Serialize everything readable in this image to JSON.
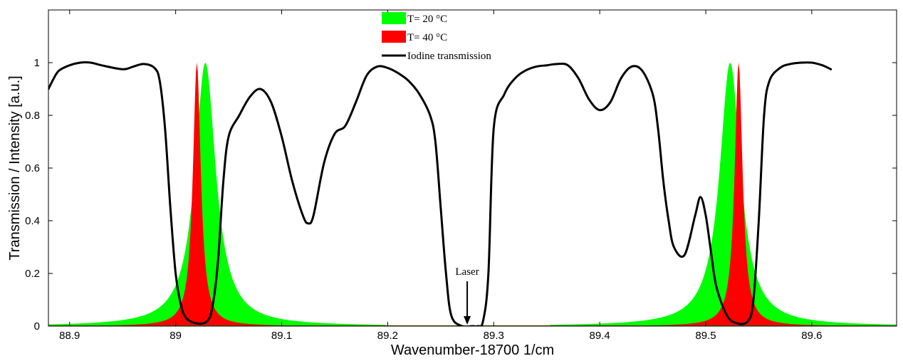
{
  "chart_data": {
    "type": "area",
    "title": "",
    "xlabel": "Wavenumber-18700 1/cm",
    "ylabel": "Transmission / Intensity [a.u.]",
    "xlim": [
      88.88,
      89.68
    ],
    "ylim": [
      0,
      1.2
    ],
    "xticks": [
      88.9,
      89,
      89.1,
      89.2,
      89.3,
      89.4,
      89.5,
      89.6
    ],
    "xtick_labels": [
      "88.9",
      "89",
      "89.1",
      "89.2",
      "89.3",
      "89.4",
      "89.5",
      "89.6"
    ],
    "yticks": [
      0,
      0.2,
      0.4,
      0.6,
      0.8,
      1
    ],
    "ytick_labels": [
      "0",
      "0.2",
      "0.4",
      "0.6",
      "0.8",
      "1"
    ],
    "grid": false,
    "legend_position": "top-center",
    "series": [
      {
        "name": "T= 20 °C",
        "kind": "filled-peaks",
        "color": "#00ff00",
        "peaks": [
          {
            "center": 89.028,
            "height": 1.0,
            "halfwidth": 0.012
          },
          {
            "center": 89.523,
            "height": 1.0,
            "halfwidth": 0.012
          }
        ]
      },
      {
        "name": "T= 40 °C",
        "kind": "filled-peaks",
        "color": "#ff0000",
        "peaks": [
          {
            "center": 89.02,
            "height": 1.0,
            "halfwidth": 0.0045
          },
          {
            "center": 89.531,
            "height": 1.0,
            "halfwidth": 0.0045
          }
        ]
      },
      {
        "name": "Iodine transmission",
        "kind": "line",
        "color": "#000000",
        "x": [
          88.88,
          88.885,
          88.89,
          88.9,
          88.91,
          88.92,
          88.93,
          88.95,
          88.96,
          88.97,
          88.98,
          88.985,
          88.99,
          88.995,
          89.0,
          89.005,
          89.01,
          89.02,
          89.03,
          89.035,
          89.04,
          89.045,
          89.05,
          89.06,
          89.07,
          89.08,
          89.09,
          89.1,
          89.11,
          89.12,
          89.125,
          89.13,
          89.14,
          89.15,
          89.16,
          89.17,
          89.18,
          89.19,
          89.2,
          89.21,
          89.22,
          89.23,
          89.24,
          89.245,
          89.25,
          89.255,
          89.26,
          89.27,
          89.28,
          89.285,
          89.29,
          89.295,
          89.3,
          89.31,
          89.32,
          89.33,
          89.34,
          89.35,
          89.36,
          89.37,
          89.38,
          89.39,
          89.4,
          89.41,
          89.42,
          89.43,
          89.44,
          89.45,
          89.455,
          89.46,
          89.465,
          89.47,
          89.48,
          89.49,
          89.495,
          89.5,
          89.505,
          89.51,
          89.52,
          89.53,
          89.54,
          89.545,
          89.55,
          89.555,
          89.56,
          89.57,
          89.58,
          89.59,
          89.6,
          89.61,
          89.618
        ],
        "y": [
          0.9,
          0.94,
          0.97,
          0.99,
          1.0,
          1.0,
          0.99,
          0.975,
          0.985,
          0.995,
          0.98,
          0.93,
          0.75,
          0.45,
          0.2,
          0.08,
          0.03,
          0.01,
          0.02,
          0.08,
          0.25,
          0.55,
          0.72,
          0.8,
          0.87,
          0.9,
          0.85,
          0.72,
          0.55,
          0.42,
          0.39,
          0.42,
          0.62,
          0.73,
          0.76,
          0.85,
          0.95,
          0.985,
          0.98,
          0.96,
          0.93,
          0.88,
          0.8,
          0.7,
          0.45,
          0.2,
          0.04,
          0.0,
          0.0,
          0.0,
          0.02,
          0.2,
          0.75,
          0.88,
          0.94,
          0.97,
          0.985,
          0.99,
          0.995,
          0.99,
          0.94,
          0.86,
          0.82,
          0.85,
          0.94,
          0.985,
          0.97,
          0.88,
          0.75,
          0.55,
          0.4,
          0.3,
          0.27,
          0.42,
          0.49,
          0.42,
          0.28,
          0.15,
          0.04,
          0.01,
          0.02,
          0.1,
          0.4,
          0.8,
          0.93,
          0.98,
          0.995,
          1.0,
          1.0,
          0.99,
          0.975
        ]
      }
    ],
    "annotations": [
      {
        "text": "Laser",
        "arrow_x": 89.275,
        "arrow_from_y": 0.17,
        "arrow_to_y": 0.0
      }
    ]
  }
}
